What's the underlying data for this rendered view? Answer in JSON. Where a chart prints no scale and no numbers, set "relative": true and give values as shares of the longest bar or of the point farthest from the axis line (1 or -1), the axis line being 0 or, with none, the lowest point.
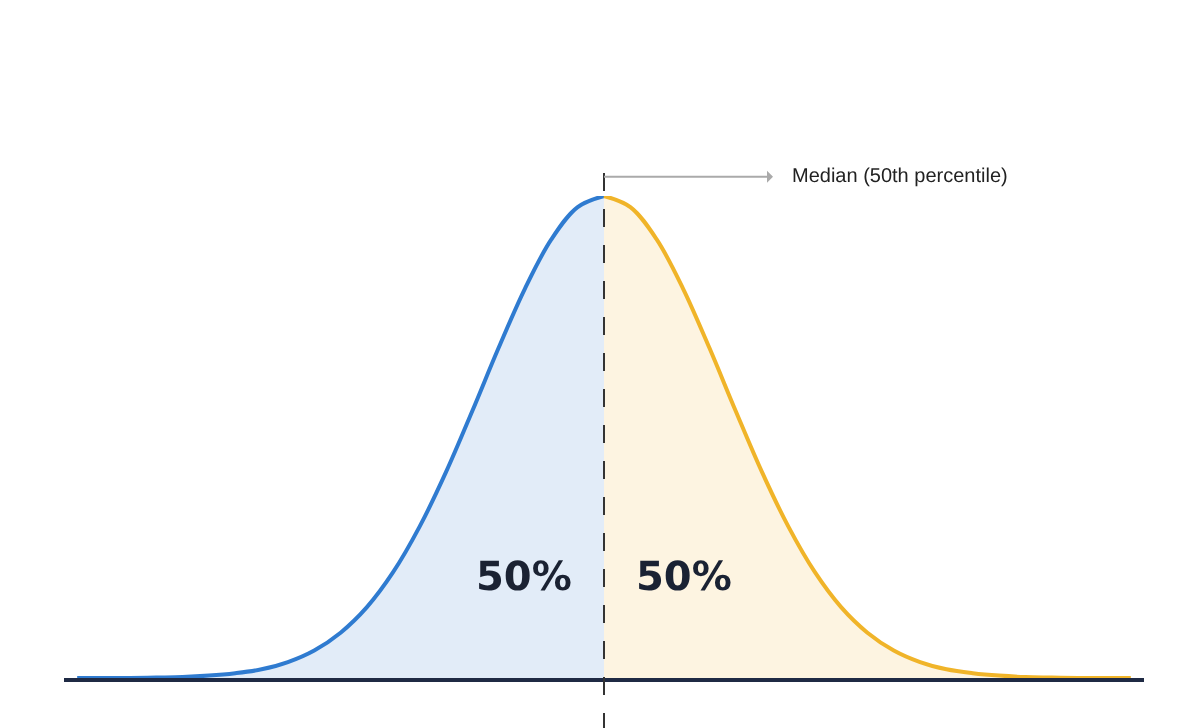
{
  "chart_data": {
    "type": "area",
    "relative": true,
    "categories": [
      null,
      null,
      null,
      null,
      null,
      null,
      null,
      null,
      null,
      null,
      null,
      null,
      null,
      null,
      null,
      null,
      null,
      null,
      null,
      null,
      null,
      null,
      null,
      null,
      null,
      null,
      null,
      null,
      null,
      null,
      null,
      null,
      null,
      null,
      null,
      null,
      null,
      null,
      null,
      null,
      null
    ],
    "series": [
      {
        "color": "#2f7bd0",
        "values": [
          0,
          0,
          0,
          0.001,
          0.002,
          0.005,
          0.01,
          0.018,
          0.033,
          0.057,
          0.094,
          0.147,
          0.22,
          0.314,
          0.427,
          0.554,
          0.685,
          0.808,
          0.91,
          0.977,
          1,
          null,
          null,
          null,
          null,
          null,
          null,
          null,
          null,
          null,
          null,
          null,
          null,
          null,
          null,
          null,
          null,
          null,
          null,
          null,
          null
        ]
      },
      {
        "color": "#f0b429",
        "values": [
          null,
          null,
          null,
          null,
          null,
          null,
          null,
          null,
          null,
          null,
          null,
          null,
          null,
          null,
          null,
          null,
          null,
          null,
          null,
          null,
          1,
          0.977,
          0.91,
          0.808,
          0.685,
          0.554,
          0.427,
          0.314,
          0.22,
          0.147,
          0.094,
          0.057,
          0.033,
          0.018,
          0.01,
          0.005,
          0.002,
          0.001,
          0,
          0,
          0
        ]
      }
    ],
    "annotations": [
      "50%",
      "50%",
      "Median (50th percentile)"
    ]
  }
}
